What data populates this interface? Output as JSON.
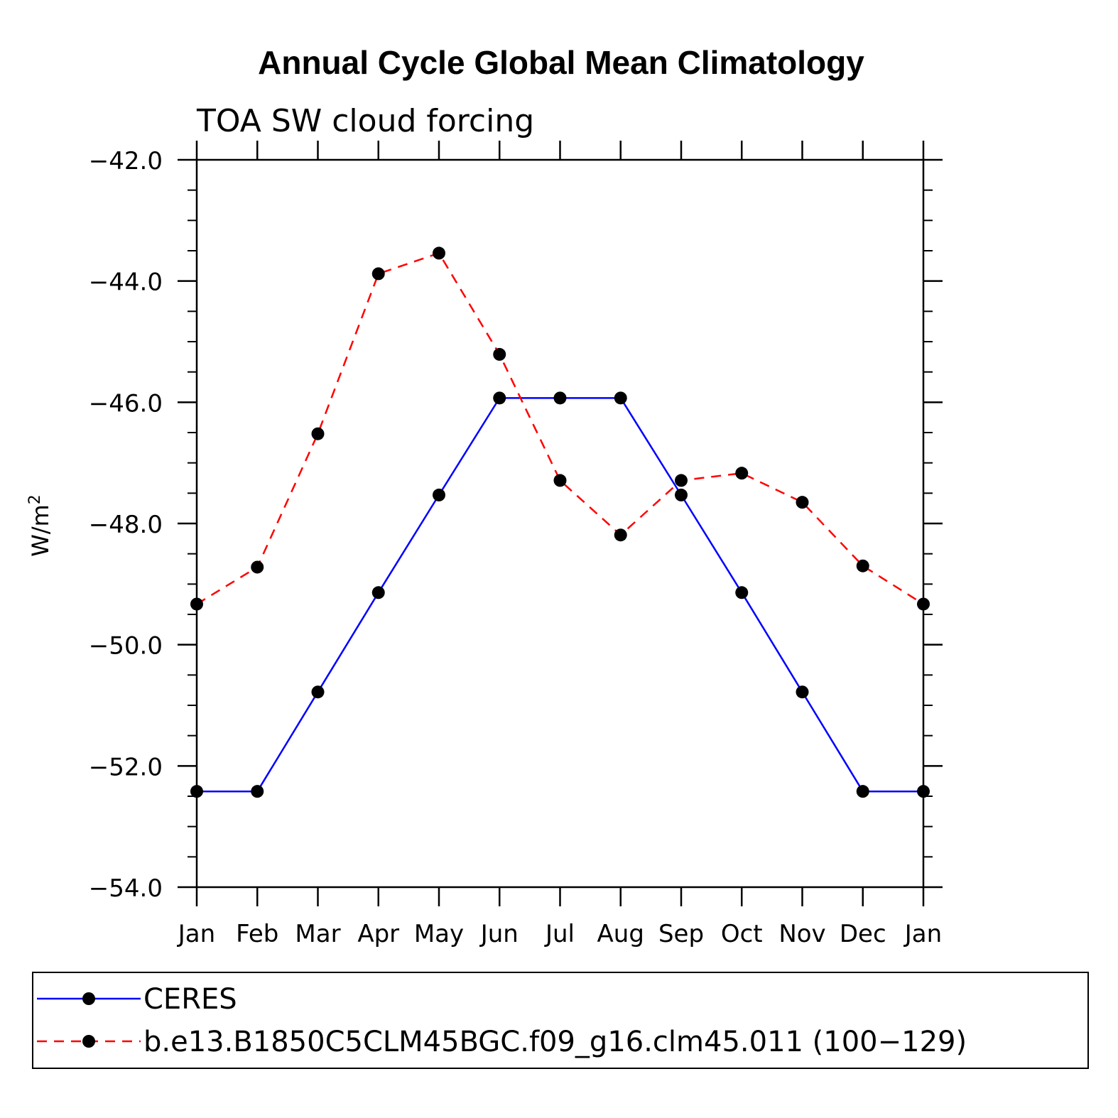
{
  "chart_data": {
    "type": "line",
    "title": "Annual Cycle Global Mean Climatology",
    "subtitle": "TOA SW cloud forcing",
    "xlabel": "",
    "ylabel_base": "W/m",
    "ylabel_sup": "2",
    "categories": [
      "Jan",
      "Feb",
      "Mar",
      "Apr",
      "May",
      "Jun",
      "Jul",
      "Aug",
      "Sep",
      "Oct",
      "Nov",
      "Dec",
      "Jan"
    ],
    "ylim": [
      -54.0,
      -42.0
    ],
    "yticks": [
      "-42.0",
      "-44.0",
      "-46.0",
      "-48.0",
      "-50.0",
      "-52.0",
      "-54.0"
    ],
    "ytick_values": [
      -42.0,
      -44.0,
      -46.0,
      -48.0,
      -50.0,
      -52.0,
      -54.0
    ],
    "series": [
      {
        "name": "CERES",
        "color": "#0000ff",
        "dash": "solid",
        "values": [
          -52.42,
          -52.42,
          -50.78,
          -49.14,
          -47.53,
          -45.93,
          -45.93,
          -45.93,
          -47.53,
          -49.14,
          -50.78,
          -52.42,
          -52.42
        ]
      },
      {
        "name": "b.e13.B1850C5CLM45BGC.f09_g16.clm45.011 (100−129)",
        "color": "#ff0000",
        "dash": "dashed",
        "values": [
          -49.33,
          -48.72,
          -46.52,
          -43.88,
          -43.54,
          -45.21,
          -47.29,
          -48.19,
          -47.29,
          -47.17,
          -47.65,
          -48.7,
          -49.33
        ]
      }
    ]
  }
}
